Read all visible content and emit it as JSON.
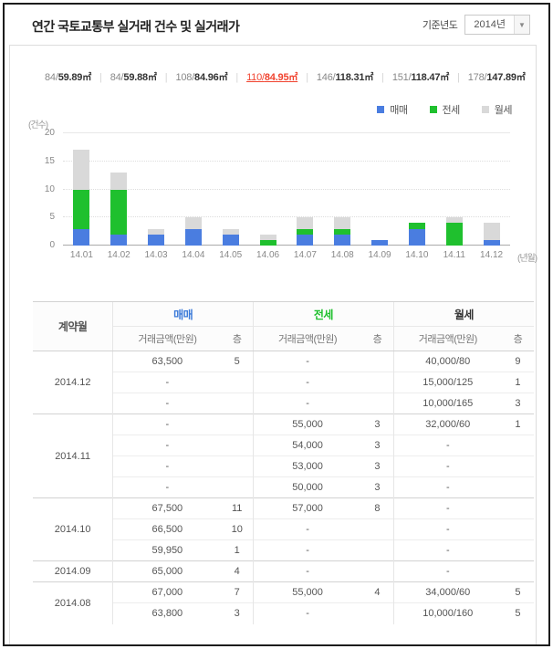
{
  "header": {
    "title": "연간 국토교통부 실거래 건수 및 실거래가",
    "base_year_label": "기준년도",
    "year_value": "2014년"
  },
  "area_tabs": {
    "selected_color": "#f0422e",
    "items": [
      {
        "front": "84/",
        "size": "59.89",
        "unit": "㎡",
        "selected": false
      },
      {
        "front": "84/",
        "size": "59.88",
        "unit": "㎡",
        "selected": false
      },
      {
        "front": "108/",
        "size": "84.96",
        "unit": "㎡",
        "selected": false
      },
      {
        "front": "110/",
        "size": "84.95",
        "unit": "㎡",
        "selected": true
      },
      {
        "front": "146/",
        "size": "118.31",
        "unit": "㎡",
        "selected": false
      },
      {
        "front": "151/",
        "size": "118.47",
        "unit": "㎡",
        "selected": false
      },
      {
        "front": "178/",
        "size": "147.89",
        "unit": "㎡",
        "selected": false
      }
    ]
  },
  "chart_data": {
    "type": "bar",
    "stacked": true,
    "title": "",
    "ylabel": "(건수)",
    "xlabel": "(년월)",
    "ylim": [
      0,
      20
    ],
    "yticks": [
      0,
      5,
      10,
      15,
      20
    ],
    "grid": true,
    "legend_position": "top-right",
    "categories": [
      "14.01",
      "14.02",
      "14.03",
      "14.04",
      "14.05",
      "14.06",
      "14.07",
      "14.08",
      "14.09",
      "14.10",
      "14.11",
      "14.12"
    ],
    "series": [
      {
        "name": "매매",
        "color": "#4a7de0",
        "values": [
          3,
          2,
          2,
          3,
          2,
          0,
          2,
          2,
          1,
          3,
          0,
          1
        ]
      },
      {
        "name": "전세",
        "color": "#1fc02e",
        "values": [
          7,
          8,
          0,
          0,
          0,
          1,
          1,
          1,
          0,
          1,
          4,
          0
        ]
      },
      {
        "name": "월세",
        "color": "#d9d9d9",
        "values": [
          7,
          3,
          1,
          2,
          1,
          1,
          2,
          2,
          0,
          0,
          1,
          3
        ]
      }
    ]
  },
  "table": {
    "col_month": "계약월",
    "groups_header": [
      {
        "label": "매매",
        "color": "#3b7ad9"
      },
      {
        "label": "전세",
        "color": "#1fc02e"
      },
      {
        "label": "월세",
        "color": "#333333"
      }
    ],
    "sub_headers": {
      "amount": "거래금액(만원)",
      "floor": "층"
    },
    "months": [
      {
        "month": "2014.12",
        "rows": [
          {
            "sale": [
              "63,500",
              "5"
            ],
            "jeonse": [
              "-",
              ""
            ],
            "wolse": [
              "40,000/80",
              "9"
            ]
          },
          {
            "sale": [
              "-",
              ""
            ],
            "jeonse": [
              "-",
              ""
            ],
            "wolse": [
              "15,000/125",
              "1"
            ]
          },
          {
            "sale": [
              "-",
              ""
            ],
            "jeonse": [
              "-",
              ""
            ],
            "wolse": [
              "10,000/165",
              "3"
            ]
          }
        ]
      },
      {
        "month": "2014.11",
        "rows": [
          {
            "sale": [
              "-",
              ""
            ],
            "jeonse": [
              "55,000",
              "3"
            ],
            "wolse": [
              "32,000/60",
              "1"
            ]
          },
          {
            "sale": [
              "-",
              ""
            ],
            "jeonse": [
              "54,000",
              "3"
            ],
            "wolse": [
              "-",
              ""
            ]
          },
          {
            "sale": [
              "-",
              ""
            ],
            "jeonse": [
              "53,000",
              "3"
            ],
            "wolse": [
              "-",
              ""
            ]
          },
          {
            "sale": [
              "-",
              ""
            ],
            "jeonse": [
              "50,000",
              "3"
            ],
            "wolse": [
              "-",
              ""
            ]
          }
        ]
      },
      {
        "month": "2014.10",
        "rows": [
          {
            "sale": [
              "67,500",
              "11"
            ],
            "jeonse": [
              "57,000",
              "8"
            ],
            "wolse": [
              "-",
              ""
            ]
          },
          {
            "sale": [
              "66,500",
              "10"
            ],
            "jeonse": [
              "-",
              ""
            ],
            "wolse": [
              "-",
              ""
            ]
          },
          {
            "sale": [
              "59,950",
              "1"
            ],
            "jeonse": [
              "-",
              ""
            ],
            "wolse": [
              "-",
              ""
            ]
          }
        ]
      },
      {
        "month": "2014.09",
        "rows": [
          {
            "sale": [
              "65,000",
              "4"
            ],
            "jeonse": [
              "-",
              ""
            ],
            "wolse": [
              "-",
              ""
            ]
          }
        ]
      },
      {
        "month": "2014.08",
        "rows": [
          {
            "sale": [
              "67,000",
              "7"
            ],
            "jeonse": [
              "55,000",
              "4"
            ],
            "wolse": [
              "34,000/60",
              "5"
            ]
          },
          {
            "sale": [
              "63,800",
              "3"
            ],
            "jeonse": [
              "-",
              ""
            ],
            "wolse": [
              "10,000/160",
              "5"
            ]
          }
        ]
      }
    ]
  }
}
